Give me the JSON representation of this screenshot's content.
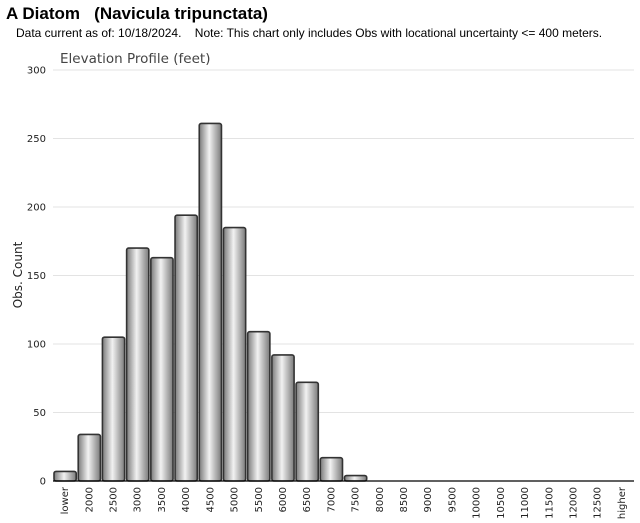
{
  "header": {
    "title": "A Diatom   (Navicula tripunctata)",
    "subtitle": "Data current as of: 10/18/2024.    Note: This chart only includes Obs with locational uncertainty <= 400 meters."
  },
  "chart_data": {
    "type": "bar",
    "title": "Elevation Profile (feet)",
    "xlabel": "",
    "ylabel": "Obs. Count",
    "ylim": [
      0,
      300
    ],
    "yticks": [
      0,
      50,
      100,
      150,
      200,
      250,
      300
    ],
    "grid": true,
    "legend": "none",
    "categories": [
      "lower",
      "2000",
      "2500",
      "3000",
      "3500",
      "4000",
      "4500",
      "5000",
      "5500",
      "6000",
      "6500",
      "7000",
      "7500",
      "8000",
      "8500",
      "9000",
      "9500",
      "10000",
      "10500",
      "11000",
      "11500",
      "12000",
      "12500",
      "higher"
    ],
    "values": [
      7,
      34,
      105,
      170,
      163,
      194,
      261,
      185,
      109,
      92,
      72,
      17,
      4,
      0,
      0,
      0,
      0,
      0,
      0,
      0,
      0,
      0,
      0,
      0
    ],
    "colors": {
      "bar": "#b8b8b8",
      "bar_stroke": "#333333",
      "grid": "#e3e3e3",
      "axis": "#000000"
    }
  }
}
